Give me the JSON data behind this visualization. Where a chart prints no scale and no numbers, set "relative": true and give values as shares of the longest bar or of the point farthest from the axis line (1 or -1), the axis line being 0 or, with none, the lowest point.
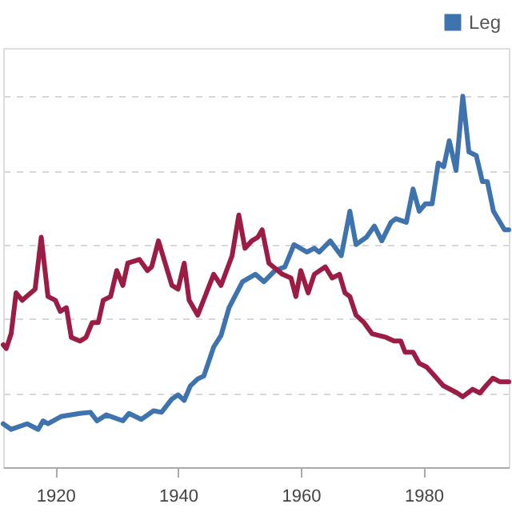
{
  "chart_data": {
    "type": "line",
    "relative": true,
    "xlim": [
      1911.5,
      1993.9
    ],
    "xticks": [
      1920,
      1940,
      1960,
      1980
    ],
    "grid": "y",
    "legend": "top right",
    "line_style": "solid",
    "marker": "none",
    "series": [
      {
        "name": "Leg",
        "color": "#3f73ad",
        "x": [
          1911.5,
          1912.8,
          1915.4,
          1917.2,
          1918,
          1918.8,
          1921,
          1924,
          1925.7,
          1926.8,
          1928.3,
          1931,
          1932,
          1934,
          1936,
          1937.3,
          1939,
          1940,
          1941,
          1942,
          1943.2,
          1944.2,
          1945.8,
          1947,
          1948.3,
          1950.5,
          1952.6,
          1954,
          1955.8,
          1957.4,
          1958.9,
          1961,
          1962.2,
          1963,
          1964.8,
          1966.6,
          1968,
          1969,
          1970.7,
          1972,
          1973.2,
          1974.7,
          1975.5,
          1977.2,
          1978.3,
          1979.3,
          1980.3,
          1981.4,
          1982.4,
          1983.3,
          1984.2,
          1985.3,
          1986.4,
          1987.4,
          1988.6,
          1989.6,
          1990.4,
          1991.4,
          1993.2,
          1993.9
        ],
        "values": [
          0.117,
          0.102,
          0.117,
          0.102,
          0.125,
          0.117,
          0.137,
          0.145,
          0.148,
          0.125,
          0.141,
          0.125,
          0.145,
          0.129,
          0.152,
          0.148,
          0.184,
          0.195,
          0.18,
          0.219,
          0.238,
          0.246,
          0.324,
          0.355,
          0.43,
          0.5,
          0.52,
          0.5,
          0.53,
          0.54,
          0.6,
          0.58,
          0.59,
          0.58,
          0.61,
          0.57,
          0.69,
          0.6,
          0.62,
          0.65,
          0.61,
          0.66,
          0.67,
          0.66,
          0.75,
          0.69,
          0.71,
          0.71,
          0.82,
          0.81,
          0.88,
          0.8,
          1,
          0.85,
          0.84,
          0.77,
          0.77,
          0.69,
          0.64,
          0.64
        ]
      },
      {
        "color": "#9b1c44",
        "x": [
          1911.5,
          1912,
          1912.8,
          1913.6,
          1914.6,
          1916.7,
          1917.7,
          1918.8,
          1920,
          1920.8,
          1921.8,
          1922.6,
          1924,
          1925,
          1926,
          1927,
          1927.8,
          1929,
          1930,
          1931,
          1931.8,
          1933.7,
          1935,
          1935.7,
          1936.8,
          1939,
          1940,
          1941,
          1941.8,
          1943.2,
          1945.8,
          1947,
          1948.8,
          1949.9,
          1950.9,
          1952,
          1953,
          1953.7,
          1954.8,
          1957,
          1958.4,
          1959.2,
          1960,
          1961.2,
          1962.2,
          1964,
          1965.1,
          1966.3,
          1967.2,
          1968,
          1969,
          1970.3,
          1971.6,
          1973.9,
          1975.2,
          1976.3,
          1977,
          1978.3,
          1979.3,
          1980.5,
          1981.6,
          1983.2,
          1985.5,
          1986.4,
          1988,
          1989.2,
          1990.2,
          1991.3,
          1992.5,
          1993.2,
          1993.9
        ],
        "values": [
          0.33,
          0.32,
          0.36,
          0.47,
          0.45,
          0.48,
          0.62,
          0.46,
          0.45,
          0.42,
          0.43,
          0.35,
          0.34,
          0.35,
          0.39,
          0.39,
          0.45,
          0.46,
          0.53,
          0.49,
          0.55,
          0.56,
          0.53,
          0.54,
          0.61,
          0.49,
          0.48,
          0.55,
          0.45,
          0.41,
          0.52,
          0.49,
          0.57,
          0.68,
          0.59,
          0.61,
          0.62,
          0.64,
          0.55,
          0.52,
          0.51,
          0.46,
          0.53,
          0.47,
          0.52,
          0.54,
          0.51,
          0.52,
          0.47,
          0.46,
          0.41,
          0.39,
          0.36,
          0.35,
          0.34,
          0.34,
          0.31,
          0.31,
          0.28,
          0.27,
          0.25,
          0.22,
          0.2,
          0.19,
          0.21,
          0.2,
          0.22,
          0.24,
          0.23,
          0.23,
          0.23
        ]
      }
    ]
  }
}
